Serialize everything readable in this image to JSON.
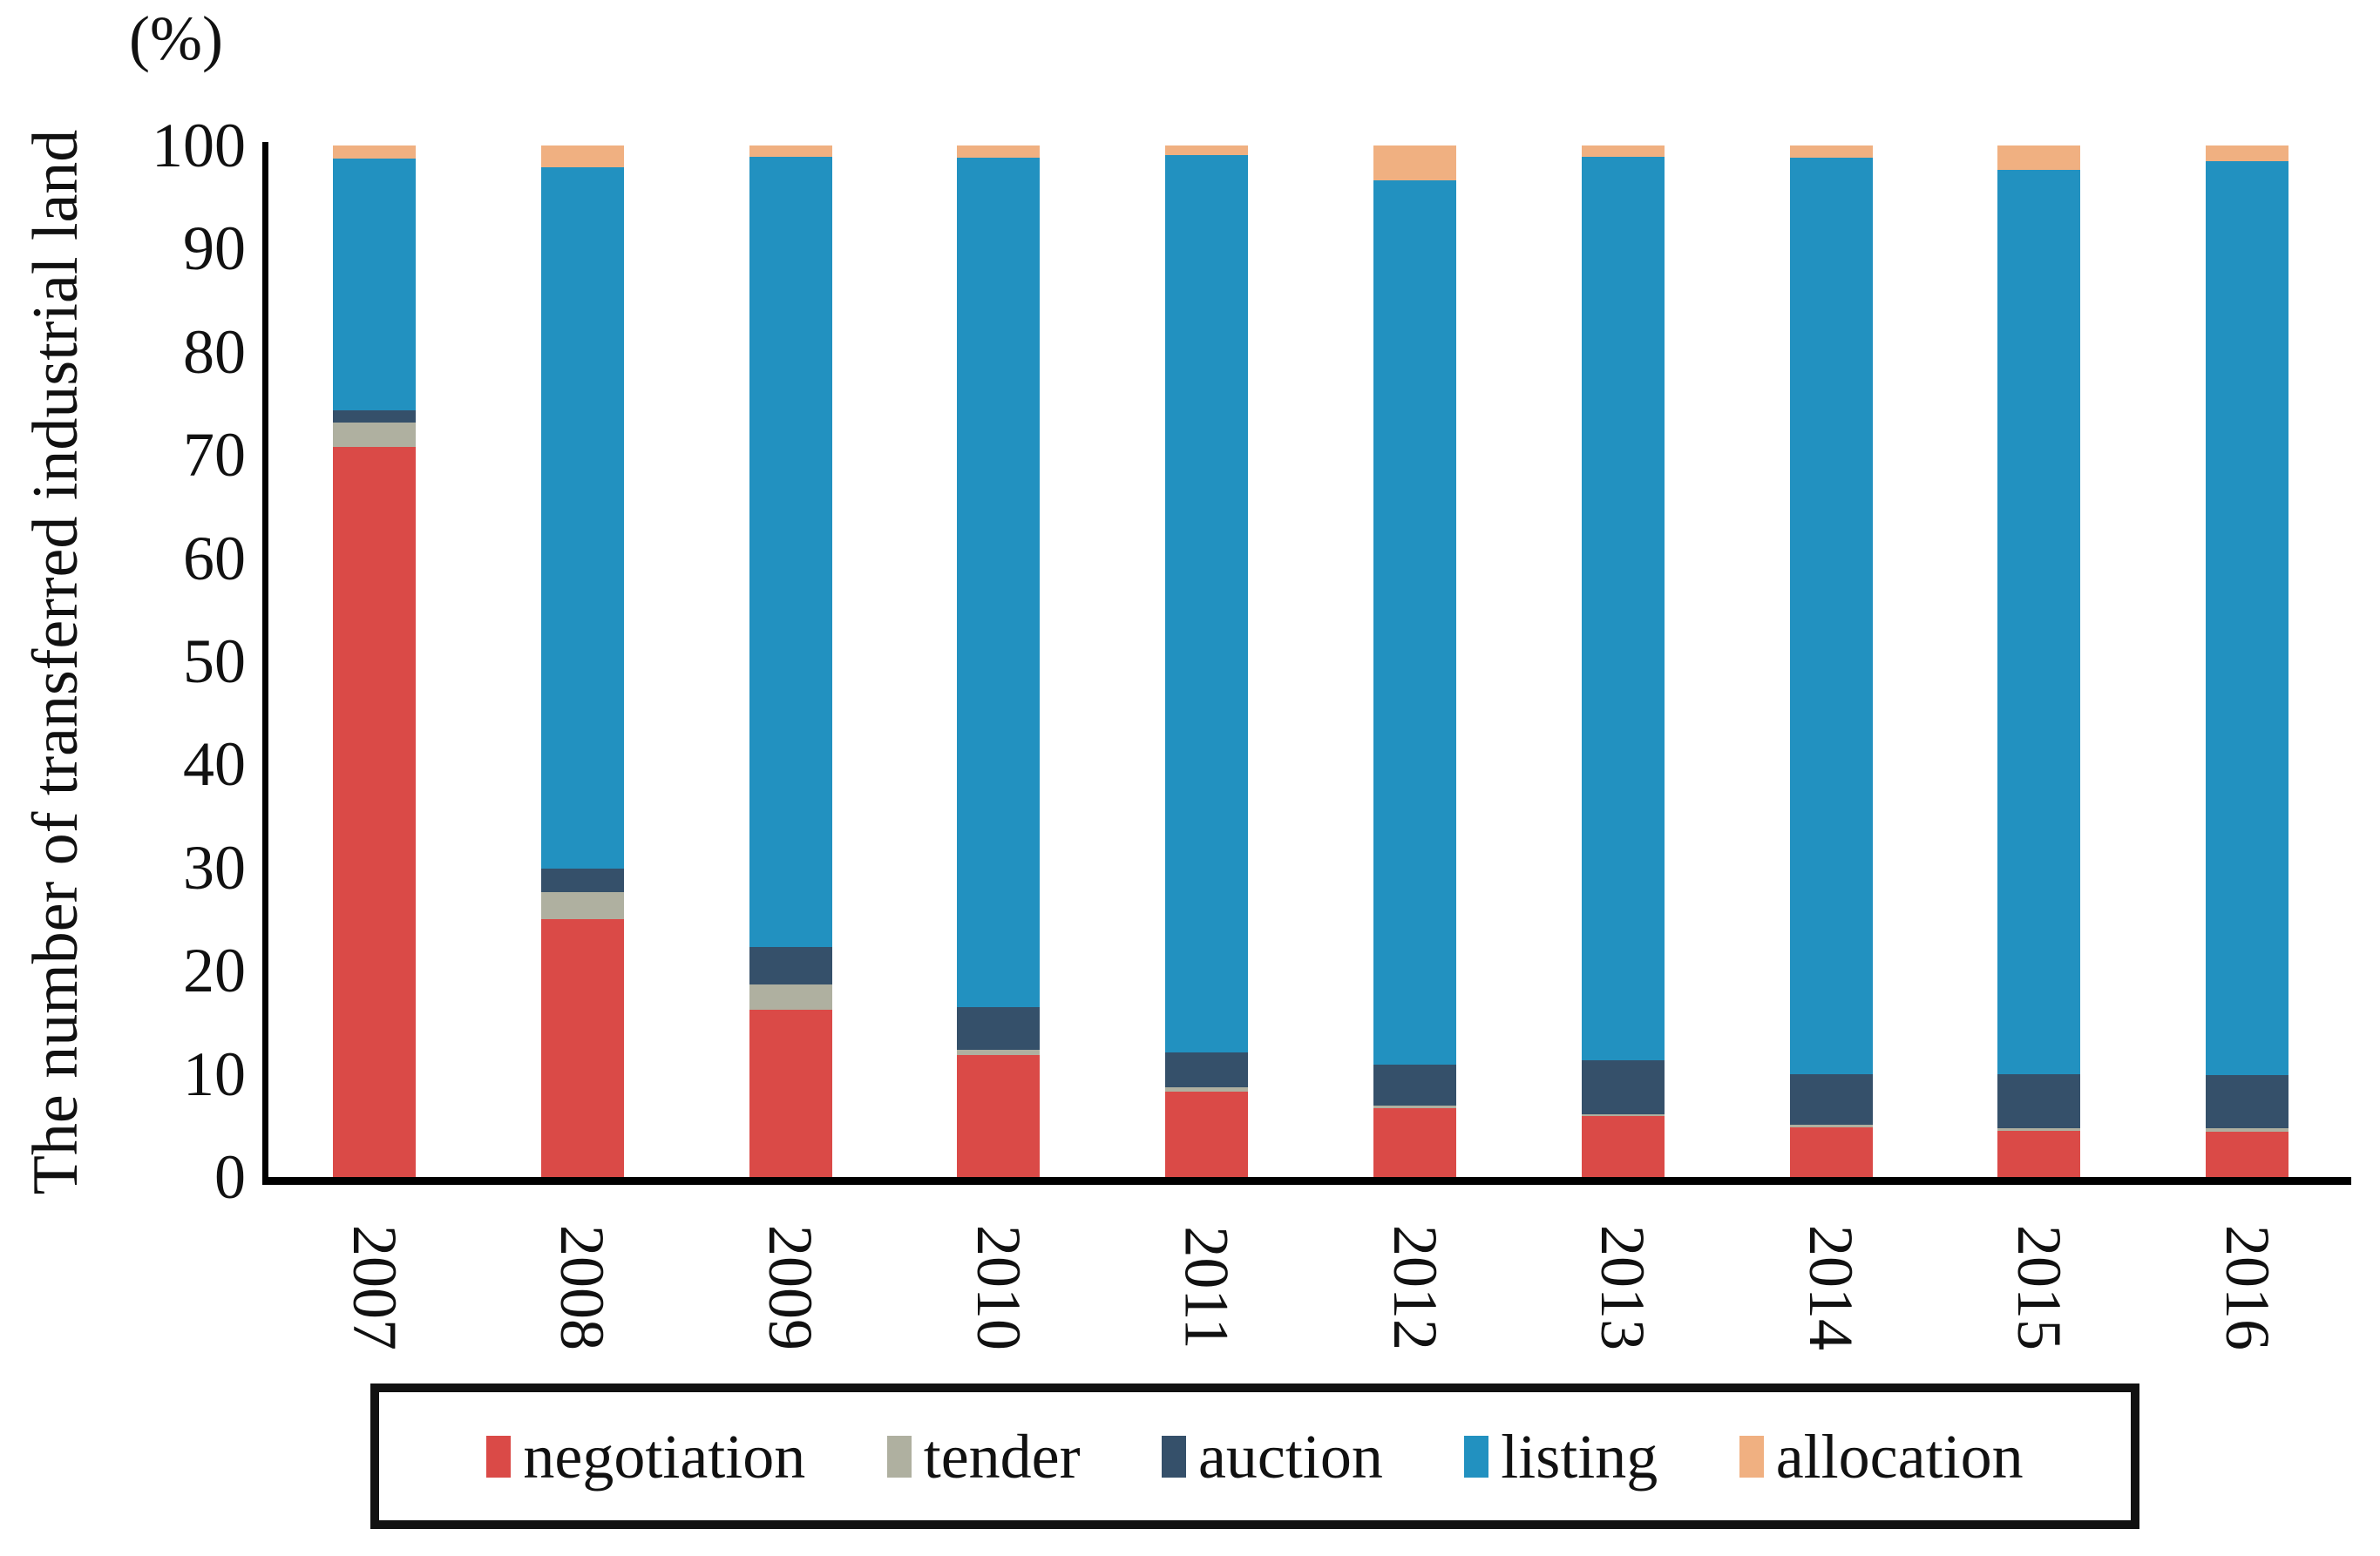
{
  "figure": {
    "percent_label": "(%)",
    "y_axis_title": "The number of transferred industrial land"
  },
  "chart_data": {
    "type": "bar",
    "stacked": true,
    "title": "",
    "xlabel": "",
    "ylabel": "The number of transferred industrial land",
    "y_unit_label": "(%)",
    "ylim": [
      0,
      100
    ],
    "yticks": [
      0,
      10,
      20,
      30,
      40,
      50,
      60,
      70,
      80,
      90,
      100
    ],
    "grid": false,
    "legend_position": "bottom",
    "x_tick_rotation": 90,
    "categories": [
      "2007",
      "2008",
      "2009",
      "2010",
      "2011",
      "2012",
      "2013",
      "2014",
      "2015",
      "2016"
    ],
    "series": [
      {
        "name": "negotiation",
        "color": "#da4a47",
        "values": [
          70.8,
          25.0,
          16.2,
          11.8,
          8.3,
          6.7,
          5.9,
          4.8,
          4.5,
          4.4
        ]
      },
      {
        "name": "tender",
        "color": "#afb0a0",
        "values": [
          2.3,
          2.6,
          2.5,
          0.5,
          0.4,
          0.2,
          0.2,
          0.3,
          0.2,
          0.3
        ]
      },
      {
        "name": "auction",
        "color": "#35506a",
        "values": [
          1.2,
          2.3,
          3.6,
          4.2,
          3.4,
          4.0,
          5.2,
          4.9,
          5.3,
          5.2
        ]
      },
      {
        "name": "listing",
        "color": "#2291c0",
        "values": [
          24.4,
          68.0,
          76.6,
          82.3,
          87.0,
          85.7,
          87.6,
          88.8,
          87.6,
          88.6
        ]
      },
      {
        "name": "allocation",
        "color": "#f0b081",
        "values": [
          1.3,
          2.1,
          1.1,
          1.2,
          0.9,
          3.4,
          1.1,
          1.2,
          2.4,
          1.5
        ]
      }
    ]
  }
}
